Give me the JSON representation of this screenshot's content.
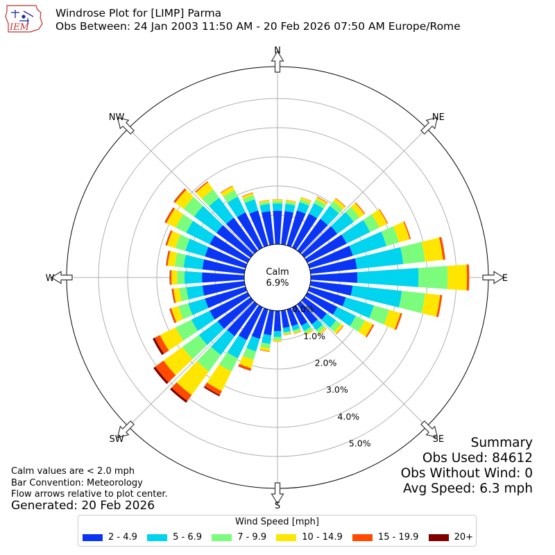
{
  "logo": {
    "text": "IEM"
  },
  "title": {
    "line1": "Windrose Plot for [LIMP] Parma",
    "line2": "Obs Between: 24 Jan 2003 11:50 AM - 20 Feb 2026 07:50 AM Europe/Rome"
  },
  "notes": {
    "line1": "Calm values are < 2.0 mph",
    "line2": "Bar Convention: Meteorology",
    "line3": "Flow arrows relative to plot center."
  },
  "generated": "Generated: 20 Feb 2026",
  "summary": {
    "heading": "Summary",
    "obs_used": "Obs Used: 84612",
    "obs_without_wind": "Obs Without Wind: 0",
    "avg_speed": "Avg Speed: 6.3 mph"
  },
  "chart_data": {
    "type": "windrose",
    "calm": {
      "label": "Calm",
      "value": "6.9%"
    },
    "directions": [
      {
        "angle": 0,
        "label": "N"
      },
      {
        "angle": 45,
        "label": "NE"
      },
      {
        "angle": 90,
        "label": "E"
      },
      {
        "angle": 135,
        "label": "SE"
      },
      {
        "angle": 180,
        "label": "S"
      },
      {
        "angle": 225,
        "label": "SW"
      },
      {
        "angle": 270,
        "label": "W"
      },
      {
        "angle": 315,
        "label": "NW"
      }
    ],
    "radial_ticks": [
      "0.0%",
      "1.0%",
      "2.0%",
      "3.0%",
      "4.0%",
      "5.0%"
    ],
    "legend_title": "Wind Speed [mph]",
    "bins": [
      {
        "label": "2 - 4.9",
        "color": "#0b35f5"
      },
      {
        "label": "5 - 6.9",
        "color": "#00d4ee"
      },
      {
        "label": "7 - 9.9",
        "color": "#7cfc7c"
      },
      {
        "label": "10 - 14.9",
        "color": "#ffe600"
      },
      {
        "label": "15 - 19.9",
        "color": "#ff4a00"
      },
      {
        "label": "20+",
        "color": "#800000"
      }
    ],
    "sectors": [
      {
        "dir": 0,
        "values": [
          1.15,
          0.25,
          0.08,
          0.05,
          0.01,
          0.0
        ]
      },
      {
        "dir": 10,
        "values": [
          1.15,
          0.25,
          0.08,
          0.05,
          0.01,
          0.0
        ]
      },
      {
        "dir": 20,
        "values": [
          1.25,
          0.3,
          0.1,
          0.07,
          0.01,
          0.0
        ]
      },
      {
        "dir": 30,
        "values": [
          1.3,
          0.4,
          0.15,
          0.08,
          0.02,
          0.0
        ]
      },
      {
        "dir": 40,
        "values": [
          1.35,
          0.55,
          0.2,
          0.12,
          0.02,
          0.0
        ]
      },
      {
        "dir": 50,
        "values": [
          1.4,
          0.7,
          0.25,
          0.2,
          0.03,
          0.0
        ]
      },
      {
        "dir": 60,
        "values": [
          1.5,
          0.9,
          0.35,
          0.3,
          0.03,
          0.0
        ]
      },
      {
        "dir": 70,
        "values": [
          1.55,
          1.2,
          0.45,
          0.38,
          0.04,
          0.0
        ]
      },
      {
        "dir": 80,
        "values": [
          1.6,
          1.6,
          0.75,
          0.62,
          0.08,
          0.0
        ]
      },
      {
        "dir": 90,
        "values": [
          1.6,
          2.1,
          1.0,
          0.66,
          0.08,
          0.0
        ]
      },
      {
        "dir": 100,
        "values": [
          1.45,
          1.7,
          0.8,
          0.52,
          0.07,
          0.0
        ]
      },
      {
        "dir": 110,
        "values": [
          1.3,
          1.0,
          0.55,
          0.4,
          0.06,
          0.0
        ]
      },
      {
        "dir": 120,
        "values": [
          1.15,
          0.7,
          0.35,
          0.3,
          0.05,
          0.0
        ]
      },
      {
        "dir": 130,
        "values": [
          0.95,
          0.4,
          0.2,
          0.1,
          0.02,
          0.0
        ]
      },
      {
        "dir": 140,
        "values": [
          0.85,
          0.25,
          0.12,
          0.06,
          0.01,
          0.0
        ]
      },
      {
        "dir": 150,
        "values": [
          0.7,
          0.2,
          0.1,
          0.05,
          0.01,
          0.0
        ]
      },
      {
        "dir": 160,
        "values": [
          0.6,
          0.15,
          0.08,
          0.04,
          0.01,
          0.0
        ]
      },
      {
        "dir": 170,
        "values": [
          0.6,
          0.15,
          0.05,
          0.04,
          0.01,
          0.0
        ]
      },
      {
        "dir": 180,
        "values": [
          0.7,
          0.2,
          0.1,
          0.05,
          0.01,
          0.0
        ]
      },
      {
        "dir": 190,
        "values": [
          0.85,
          0.3,
          0.15,
          0.1,
          0.02,
          0.0
        ]
      },
      {
        "dir": 200,
        "values": [
          1.05,
          0.45,
          0.3,
          0.3,
          0.08,
          0.01
        ]
      },
      {
        "dir": 210,
        "values": [
          1.25,
          0.7,
          0.5,
          0.75,
          0.15,
          0.05
        ]
      },
      {
        "dir": 220,
        "values": [
          1.35,
          0.8,
          0.7,
          1.0,
          0.25,
          0.08
        ]
      },
      {
        "dir": 230,
        "values": [
          1.4,
          0.8,
          0.7,
          0.8,
          0.35,
          0.08
        ]
      },
      {
        "dir": 240,
        "values": [
          1.45,
          0.7,
          0.6,
          0.6,
          0.2,
          0.08
        ]
      },
      {
        "dir": 250,
        "values": [
          1.45,
          0.6,
          0.35,
          0.25,
          0.06,
          0.01
        ]
      },
      {
        "dir": 260,
        "values": [
          1.45,
          0.55,
          0.25,
          0.2,
          0.05,
          0.01
        ]
      },
      {
        "dir": 270,
        "values": [
          1.45,
          0.6,
          0.25,
          0.2,
          0.05,
          0.01
        ]
      },
      {
        "dir": 280,
        "values": [
          1.45,
          0.65,
          0.3,
          0.25,
          0.05,
          0.01
        ]
      },
      {
        "dir": 290,
        "values": [
          1.45,
          0.7,
          0.35,
          0.3,
          0.05,
          0.01
        ]
      },
      {
        "dir": 300,
        "values": [
          1.45,
          0.9,
          0.4,
          0.35,
          0.06,
          0.01
        ]
      },
      {
        "dir": 310,
        "values": [
          1.45,
          0.95,
          0.45,
          0.35,
          0.06,
          0.01
        ]
      },
      {
        "dir": 320,
        "values": [
          1.4,
          0.85,
          0.35,
          0.3,
          0.04,
          0.0
        ]
      },
      {
        "dir": 330,
        "values": [
          1.35,
          0.6,
          0.25,
          0.15,
          0.02,
          0.0
        ]
      },
      {
        "dir": 340,
        "values": [
          1.25,
          0.4,
          0.15,
          0.08,
          0.02,
          0.0
        ]
      },
      {
        "dir": 350,
        "values": [
          1.15,
          0.25,
          0.08,
          0.05,
          0.01,
          0.0
        ]
      }
    ]
  }
}
